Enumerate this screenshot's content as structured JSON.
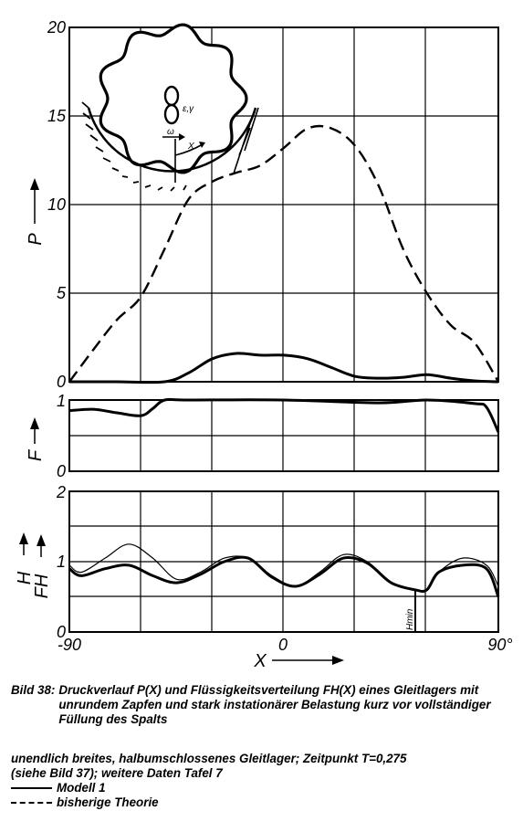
{
  "figure": {
    "inset_label": "ε,γ",
    "inset_omega": "ω",
    "inset_x": "X",
    "hmin_label": "Hmin",
    "panel_p": {
      "ylabel": "P",
      "yticks": [
        "0",
        "5",
        "10",
        "15",
        "20"
      ]
    },
    "panel_f": {
      "ylabel": "F",
      "yticks": [
        "0",
        "1"
      ]
    },
    "panel_h": {
      "ylabel_h": "H",
      "ylabel_fh": "FH",
      "yticks": [
        "0",
        "1",
        "2"
      ]
    },
    "x_axis": {
      "label": "X",
      "ticks": [
        "-90",
        "0",
        "90°"
      ]
    }
  },
  "chart_data": [
    {
      "type": "line",
      "ylabel": "P",
      "xlabel": "X",
      "xlim": [
        -90,
        90
      ],
      "ylim": [
        0,
        20
      ],
      "series": [
        {
          "style": "solid",
          "x": [
            -90,
            -70,
            -50,
            -40,
            -30,
            -20,
            -10,
            0,
            10,
            20,
            30,
            40,
            50,
            60,
            70,
            80,
            90
          ],
          "y": [
            0,
            0,
            0,
            0.5,
            1.3,
            1.6,
            1.5,
            1.5,
            1.3,
            0.8,
            0.3,
            0.2,
            0.25,
            0.4,
            0.2,
            0.05,
            0
          ]
        },
        {
          "style": "dashed",
          "x": [
            -90,
            -80,
            -70,
            -60,
            -50,
            -40,
            -30,
            -20,
            -10,
            0,
            10,
            20,
            30,
            40,
            50,
            60,
            70,
            80,
            90
          ],
          "y": [
            0,
            1.8,
            3.5,
            4.8,
            7.5,
            10.3,
            11.3,
            11.8,
            12.2,
            13.2,
            14.3,
            14.3,
            13.3,
            11.0,
            7.5,
            5.0,
            3.2,
            2.2,
            0
          ]
        }
      ]
    },
    {
      "type": "line",
      "ylabel": "F",
      "xlabel": "X",
      "xlim": [
        -90,
        90
      ],
      "ylim": [
        0,
        1
      ],
      "series": [
        {
          "style": "solid",
          "x": [
            -90,
            -80,
            -70,
            -60,
            -55,
            -50,
            -40,
            0,
            40,
            60,
            80,
            85,
            90
          ],
          "y": [
            0.85,
            0.87,
            0.82,
            0.78,
            0.88,
            1.0,
            1.0,
            1.0,
            0.96,
            1.0,
            0.95,
            0.9,
            0.55
          ]
        }
      ]
    },
    {
      "type": "line",
      "ylabel": "H / FH",
      "xlabel": "X",
      "xlim": [
        -90,
        90
      ],
      "ylim": [
        0,
        2
      ],
      "series": [
        {
          "style": "thin",
          "x": [
            -90,
            -85,
            -75,
            -65,
            -55,
            -45,
            -35,
            -25,
            -15,
            -5,
            5,
            15,
            25,
            35,
            45,
            55,
            60,
            65,
            75,
            85,
            90
          ],
          "y": [
            0.95,
            0.85,
            1.05,
            1.25,
            1.05,
            0.75,
            0.85,
            1.05,
            1.05,
            0.8,
            0.65,
            0.85,
            1.1,
            1.0,
            0.7,
            0.6,
            0.6,
            0.85,
            1.05,
            0.95,
            0.65
          ]
        },
        {
          "style": "thick",
          "x": [
            -90,
            -85,
            -75,
            -65,
            -55,
            -45,
            -35,
            -25,
            -15,
            -5,
            5,
            15,
            25,
            35,
            45,
            55,
            60,
            65,
            75,
            85,
            90
          ],
          "y": [
            0.9,
            0.8,
            0.9,
            0.95,
            0.8,
            0.7,
            0.82,
            1.0,
            1.05,
            0.78,
            0.65,
            0.82,
            1.05,
            0.98,
            0.7,
            0.6,
            0.6,
            0.85,
            0.95,
            0.9,
            0.5
          ]
        }
      ]
    }
  ],
  "caption": {
    "label": "Bild 38:",
    "text": "Druckverlauf P(X) und Flüssigkeitsverteilung FH(X) eines Gleitlagers mit unrundem Zapfen und stark instationärer Belastung kurz vor vollständiger Füllung des Spalts"
  },
  "notes": {
    "line1": "unendlich breites, halbumschlossenes Gleitlager; Zeitpunkt T=0,275",
    "line2": "(siehe Bild 37); weitere Daten Tafel 7"
  },
  "legend": [
    {
      "style": "solid",
      "label": "Modell 1"
    },
    {
      "style": "dashed",
      "label": "bisherige Theorie"
    }
  ]
}
